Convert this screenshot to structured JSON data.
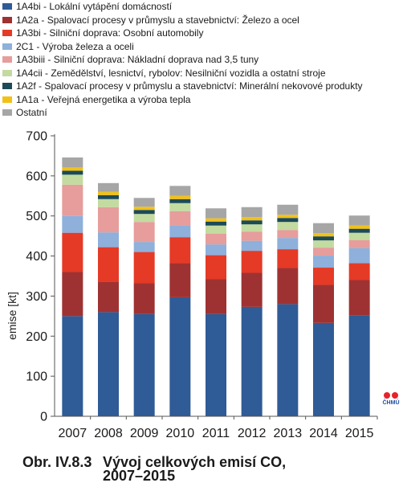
{
  "chart_data": {
    "type": "bar",
    "stacked": true,
    "categories": [
      "2007",
      "2008",
      "2009",
      "2010",
      "2011",
      "2012",
      "2013",
      "2014",
      "2015"
    ],
    "ylabel": "emise [kt]",
    "ylim": [
      0,
      700
    ],
    "yticks": [
      0,
      100,
      200,
      300,
      400,
      500,
      600,
      700
    ],
    "grid": false,
    "legend_position": "top",
    "series": [
      {
        "name": "1A4bi - Lokální vytápění domácností",
        "color": "#2f5b96",
        "values": [
          250,
          260,
          255,
          297,
          255,
          273,
          280,
          233,
          252
        ]
      },
      {
        "name": "1A2a - Spalovací procesy v průmyslu a stavebnictví: Železo a ocel",
        "color": "#9e3232",
        "values": [
          110,
          75,
          77,
          85,
          87,
          85,
          90,
          95,
          88
        ]
      },
      {
        "name": "1A3bi - Silniční doprava: Osobní automobily",
        "color": "#e53a26",
        "values": [
          98,
          87,
          78,
          65,
          60,
          55,
          47,
          43,
          42
        ]
      },
      {
        "name": "2C1 - Výroba železa a oceli",
        "color": "#8eb0db",
        "values": [
          42,
          37,
          25,
          30,
          27,
          25,
          28,
          30,
          38
        ]
      },
      {
        "name": "1A3biii - Silniční doprava: Nákladní doprava nad 3,5 tuny",
        "color": "#e69d9b",
        "values": [
          78,
          63,
          50,
          35,
          27,
          23,
          20,
          20,
          20
        ]
      },
      {
        "name": "1A4cii - Zemědělství, lesnictví, rybolov: Nesilniční vozidla a ostatní stroje",
        "color": "#c3dba0",
        "values": [
          25,
          20,
          20,
          20,
          20,
          18,
          20,
          18,
          18
        ]
      },
      {
        "name": "1A2f - Spalovací procesy v průmyslu a stavebnictví: Minerální nekovové produkty",
        "color": "#1d4a57",
        "values": [
          10,
          10,
          10,
          10,
          10,
          10,
          10,
          10,
          10
        ]
      },
      {
        "name": "1A1a - Veřejná energetika a výroba tepla",
        "color": "#f2c116",
        "values": [
          8,
          8,
          8,
          8,
          8,
          8,
          8,
          8,
          8
        ]
      },
      {
        "name": "Ostatní",
        "color": "#a6a6a6",
        "values": [
          25,
          22,
          22,
          25,
          25,
          25,
          25,
          25,
          25
        ]
      }
    ]
  },
  "caption": {
    "number": "Obr. IV.8.3",
    "title_line1": "Vývoj celkových emisí CO,",
    "title_line2": "2007–2015"
  },
  "logo": {
    "text": "ČHMÚ",
    "dot_color": "#e8212a",
    "text_color": "#1f4fa0"
  }
}
